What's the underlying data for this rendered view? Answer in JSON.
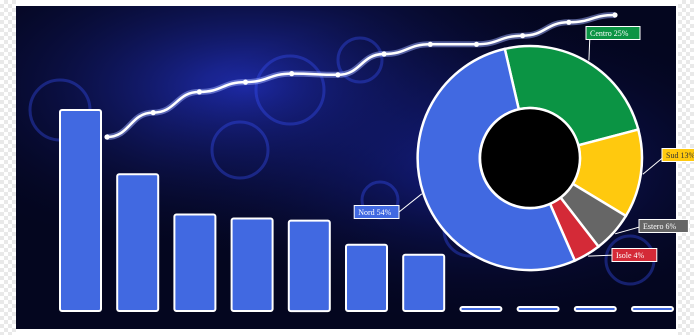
{
  "colors": {
    "background": "#04061f",
    "glow": "#1f2fd8",
    "bar": "#4169e1",
    "stroke": "#ffffff",
    "line": "#ffffff"
  },
  "chart_data": [
    {
      "type": "bar",
      "values": [
        100,
        68,
        48,
        46,
        45,
        33,
        28,
        2,
        1,
        1,
        1
      ],
      "ylim": [
        0,
        100
      ],
      "title": "",
      "xlabel": "",
      "ylabel": "",
      "grid": false
    },
    {
      "type": "line",
      "values": [
        0,
        20,
        37,
        45,
        52,
        51,
        68,
        76,
        76,
        83,
        94,
        100
      ],
      "ylim": [
        0,
        100
      ],
      "title": "",
      "xlabel": "",
      "ylabel": "",
      "grid": false
    },
    {
      "type": "pie",
      "donut": true,
      "labels": [
        "Centro 25%",
        "Sud 13%",
        "Estero 6%",
        "Isole 4%",
        "Nord 54%"
      ],
      "values": [
        25,
        13,
        6,
        4,
        54
      ],
      "colors": [
        "#0b9444",
        "#ffc90e",
        "#666666",
        "#d42a37",
        "#4169e1"
      ],
      "title": "",
      "legend": "none"
    }
  ]
}
